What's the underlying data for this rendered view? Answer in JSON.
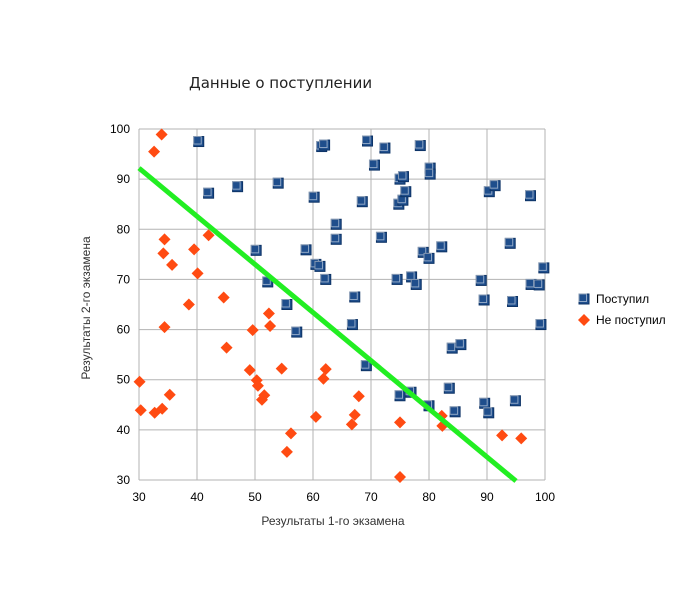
{
  "chart_data": {
    "type": "scatter",
    "title": "Данные о поступлении",
    "xlabel": "Результаты 1-го экзамена",
    "ylabel": "Результаты 2-го экзамена",
    "xlim": [
      30,
      100
    ],
    "ylim": [
      30,
      100
    ],
    "xticks": [
      30,
      40,
      50,
      60,
      70,
      80,
      90,
      100
    ],
    "yticks": [
      30,
      40,
      50,
      60,
      70,
      80,
      90,
      100
    ],
    "grid": true,
    "legend_position": "right",
    "colors": {
      "admitted": "#1f4e8c",
      "rejected": "#ff4b12",
      "boundary": "#22ee22",
      "grid": "#b3b3b3"
    },
    "series": [
      {
        "name": "Поступил",
        "marker": "square",
        "color": "#1f4e8c",
        "points": [
          [
            40.3,
            97.5
          ],
          [
            42.0,
            87.2
          ],
          [
            47.0,
            88.5
          ],
          [
            54.0,
            89.2
          ],
          [
            60.2,
            86.4
          ],
          [
            61.5,
            96.5
          ],
          [
            62.0,
            96.8
          ],
          [
            64.0,
            81.0
          ],
          [
            64.0,
            78.0
          ],
          [
            58.8,
            75.9
          ],
          [
            50.2,
            75.8
          ],
          [
            60.5,
            73.0
          ],
          [
            61.2,
            72.6
          ],
          [
            62.2,
            70.0
          ],
          [
            52.2,
            69.5
          ],
          [
            55.5,
            65.0
          ],
          [
            57.2,
            59.5
          ],
          [
            67.2,
            66.5
          ],
          [
            66.8,
            61.0
          ],
          [
            69.2,
            52.8
          ],
          [
            68.5,
            85.5
          ],
          [
            69.4,
            97.6
          ],
          [
            70.6,
            92.8
          ],
          [
            72.4,
            96.2
          ],
          [
            71.8,
            78.4
          ],
          [
            74.5,
            70.0
          ],
          [
            74.8,
            85.0
          ],
          [
            75.0,
            90.0
          ],
          [
            75.5,
            85.8
          ],
          [
            75.6,
            90.5
          ],
          [
            76.0,
            87.5
          ],
          [
            77.0,
            70.5
          ],
          [
            77.8,
            69.0
          ],
          [
            78.5,
            96.7
          ],
          [
            79.0,
            75.4
          ],
          [
            80.0,
            74.2
          ],
          [
            80.2,
            92.2
          ],
          [
            80.2,
            91.0
          ],
          [
            82.2,
            76.5
          ],
          [
            76.9,
            47.5
          ],
          [
            75.0,
            46.8
          ],
          [
            80.0,
            44.8
          ],
          [
            83.5,
            48.3
          ],
          [
            84.5,
            43.6
          ],
          [
            84.0,
            56.3
          ],
          [
            85.5,
            57.0
          ],
          [
            89.0,
            69.8
          ],
          [
            89.5,
            65.9
          ],
          [
            89.6,
            45.3
          ],
          [
            90.3,
            43.4
          ],
          [
            90.4,
            87.5
          ],
          [
            91.4,
            88.7
          ],
          [
            94.0,
            77.2
          ],
          [
            94.4,
            65.6
          ],
          [
            94.9,
            45.8
          ],
          [
            97.5,
            86.7
          ],
          [
            97.6,
            69.0
          ],
          [
            99.0,
            68.9
          ],
          [
            99.3,
            61.0
          ],
          [
            99.8,
            72.3
          ]
        ]
      },
      {
        "name": "Не поступил",
        "marker": "diamond",
        "color": "#ff4b12",
        "points": [
          [
            33.9,
            98.9
          ],
          [
            32.6,
            95.5
          ],
          [
            34.4,
            78.0
          ],
          [
            34.2,
            75.2
          ],
          [
            35.7,
            72.9
          ],
          [
            39.5,
            76.0
          ],
          [
            40.1,
            71.2
          ],
          [
            42.0,
            78.8
          ],
          [
            38.6,
            65.0
          ],
          [
            34.4,
            60.5
          ],
          [
            30.1,
            49.6
          ],
          [
            30.3,
            43.9
          ],
          [
            32.7,
            43.4
          ],
          [
            34.0,
            44.2
          ],
          [
            35.3,
            47.0
          ],
          [
            44.6,
            66.4
          ],
          [
            45.1,
            56.4
          ],
          [
            49.6,
            59.9
          ],
          [
            52.4,
            63.2
          ],
          [
            52.6,
            60.7
          ],
          [
            49.1,
            51.9
          ],
          [
            50.3,
            49.9
          ],
          [
            50.5,
            48.8
          ],
          [
            51.2,
            46.0
          ],
          [
            51.6,
            46.9
          ],
          [
            54.6,
            52.2
          ],
          [
            55.5,
            35.6
          ],
          [
            56.2,
            39.3
          ],
          [
            60.5,
            42.6
          ],
          [
            61.8,
            50.2
          ],
          [
            62.2,
            52.1
          ],
          [
            66.7,
            41.1
          ],
          [
            67.2,
            43.0
          ],
          [
            67.9,
            46.7
          ],
          [
            75.0,
            41.5
          ],
          [
            75.0,
            30.6
          ],
          [
            82.2,
            42.8
          ],
          [
            82.3,
            40.8
          ],
          [
            92.6,
            38.9
          ],
          [
            95.9,
            38.3
          ]
        ]
      }
    ],
    "decision_boundary": {
      "x": [
        30,
        95
      ],
      "y": [
        92.2,
        29.8
      ]
    }
  }
}
